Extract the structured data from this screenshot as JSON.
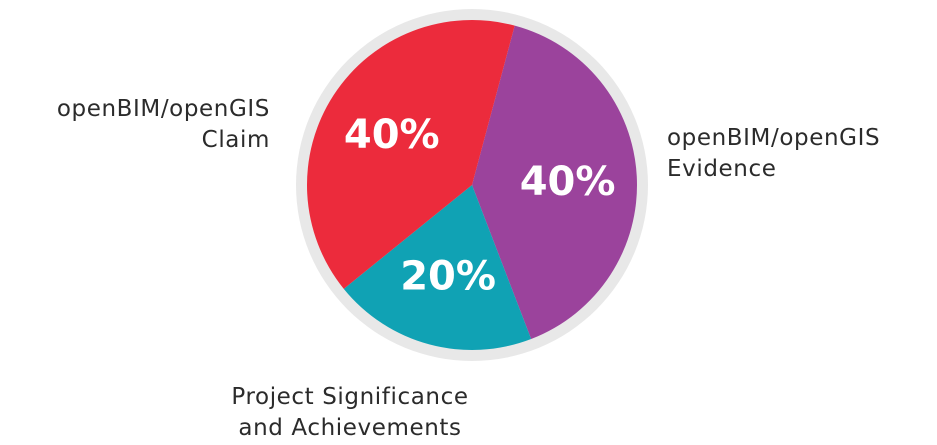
{
  "chart_data": {
    "type": "pie",
    "slices": [
      {
        "label_lines": [
          "openBIM/openGIS",
          "Evidence"
        ],
        "value": 40,
        "value_label": "40%",
        "color": "#9b439c"
      },
      {
        "label_lines": [
          "Project Significance",
          "and Achievements"
        ],
        "value": 20,
        "value_label": "20%",
        "color": "#10a2b4"
      },
      {
        "label_lines": [
          "openBIM/openGIS",
          "Claim"
        ],
        "value": 40,
        "value_label": "40%",
        "color": "#ec2b3c"
      }
    ],
    "border_color": "#e8e8e8",
    "value_label_color": "#ffffff",
    "category_label_color": "#2b2b2b"
  }
}
